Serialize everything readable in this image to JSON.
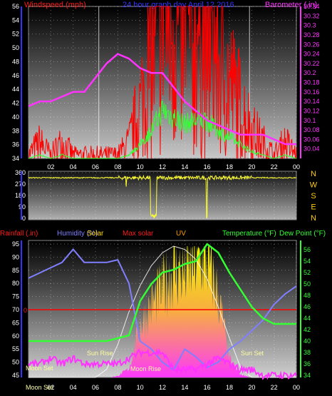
{
  "header": {
    "left": "Windspeed (mph)",
    "center": "24 hour graph day   April 12 2016",
    "right": "Barometer (.in)"
  },
  "colors": {
    "wind": "#ff1a1a",
    "gust": "#ff0000",
    "winddir": "#ffff33",
    "barometer": "#ff33ff",
    "humidity": "#7f7fff",
    "temperature": "#33ff33",
    "dewpoint": "#ff33ff",
    "solar": "#ffd700",
    "maxsolar": "#ffffff",
    "rain": "#ff0000",
    "axis_left": "#3333ff",
    "axis_right": "#33ff33",
    "axis_baro": "#ff33ff"
  },
  "x_ticks": [
    "02",
    "04",
    "06",
    "08",
    "10",
    "12",
    "14",
    "16",
    "18",
    "20",
    "22",
    "00"
  ],
  "dir_labels": [
    "N",
    "W",
    "S",
    "E",
    "N"
  ],
  "legend": {
    "rainfall": "Rainfall (.in)",
    "humidity": "Humidity (%)",
    "solar": "Solar",
    "maxsolar": "Max solar",
    "uv": "UV",
    "temperature": "Temperature (°F)",
    "dewpoint": "Dew Point (°F)"
  },
  "annotations": {
    "moon_set": "Moon Set",
    "moon_rise": "Moon Rise",
    "sun_rise": "Sun Rise",
    "sun_set": "Sun Set",
    "rain_zero": "0",
    "moon_set_axis": "Moon Set"
  },
  "chart_data": [
    {
      "type": "line",
      "title": "24 hour graph day   April 12 2016",
      "x": [
        0,
        1,
        2,
        3,
        4,
        5,
        6,
        7,
        8,
        9,
        10,
        11,
        12,
        13,
        14,
        15,
        16,
        17,
        18,
        19,
        20,
        21,
        22,
        23,
        24
      ],
      "series": [
        {
          "name": "Windspeed (mph)",
          "values": [
            34,
            35,
            34,
            35,
            34,
            34,
            34,
            34,
            34,
            35,
            38,
            42,
            48,
            46,
            44,
            45,
            45,
            42,
            40,
            38,
            36,
            35,
            34,
            35,
            34
          ]
        },
        {
          "name": "Barometer (.in)",
          "values": [
            30.13,
            30.14,
            30.14,
            30.15,
            30.16,
            30.16,
            30.19,
            30.22,
            30.24,
            30.23,
            30.21,
            30.2,
            30.2,
            30.17,
            30.14,
            30.12,
            30.1,
            30.09,
            30.08,
            30.07,
            30.07,
            30.07,
            30.06,
            30.05,
            30.05
          ]
        }
      ],
      "ylim_left": [
        34,
        56
      ],
      "ylim_right": [
        30.02,
        30.34
      ],
      "y_ticks_left": [
        34,
        36,
        38,
        40,
        42,
        44,
        46,
        48,
        50,
        52,
        54,
        56
      ],
      "y_ticks_right": [
        "30.04",
        "30.06",
        "30.08",
        "30.1",
        "30.12",
        "30.14",
        "30.16",
        "30.18",
        "30.2",
        "30.22",
        "30.24",
        "30.26",
        "30.28",
        "30.3",
        "30.32",
        "30.34"
      ]
    },
    {
      "type": "line",
      "series": [
        {
          "name": "Wind direction",
          "values": [
            320,
            320,
            320,
            320,
            320,
            320,
            320,
            320,
            320,
            320,
            320,
            320,
            330,
            0,
            330,
            330,
            0,
            320,
            320,
            320,
            320,
            320,
            320,
            320,
            320
          ]
        }
      ],
      "ylim": [
        0,
        360
      ],
      "y_ticks": [
        0,
        90,
        180,
        270,
        360
      ]
    },
    {
      "type": "line",
      "x": [
        0,
        1,
        2,
        3,
        4,
        5,
        6,
        7,
        8,
        9,
        10,
        11,
        12,
        13,
        14,
        15,
        16,
        17,
        18,
        19,
        20,
        21,
        22,
        23,
        24
      ],
      "series": [
        {
          "name": "Humidity (%)",
          "values": [
            82,
            84,
            86,
            88,
            93,
            88,
            88,
            88,
            89,
            80,
            58,
            55,
            50,
            47,
            55,
            52,
            48,
            50,
            55,
            58,
            62,
            66,
            72,
            76,
            79
          ]
        },
        {
          "name": "Temperature (°F)",
          "values": [
            40,
            40,
            40,
            40,
            40,
            40,
            40,
            40,
            40.5,
            41,
            47,
            50,
            52,
            52.5,
            53.5,
            54,
            57,
            55.5,
            52,
            49,
            46,
            44,
            43,
            43,
            43
          ]
        },
        {
          "name": "Dew Point (°F)",
          "values": [
            36,
            36,
            37,
            36,
            37,
            36,
            36,
            36,
            36,
            37,
            38,
            38,
            38,
            35,
            35,
            35,
            36,
            37,
            36,
            35,
            35,
            34,
            34,
            34,
            34
          ]
        },
        {
          "name": "Solar",
          "values": [
            0,
            0,
            0,
            0,
            0,
            0,
            0,
            0,
            10,
            60,
            350,
            480,
            600,
            720,
            700,
            780,
            800,
            550,
            120,
            20,
            0,
            0,
            0,
            0,
            0
          ]
        },
        {
          "name": "Max solar",
          "values": [
            0,
            0,
            0,
            0,
            0,
            0,
            0,
            50,
            200,
            400,
            560,
            680,
            760,
            800,
            780,
            720,
            600,
            430,
            240,
            60,
            0,
            0,
            0,
            0,
            0
          ]
        }
      ],
      "ylim_left": [
        45,
        95
      ],
      "ylim_right": [
        34,
        57
      ],
      "y_ticks_left": [
        45,
        50,
        55,
        60,
        65,
        70,
        75,
        80,
        85,
        90,
        95
      ],
      "y_ticks_right": [
        34,
        36,
        38,
        40,
        42,
        44,
        46,
        48,
        50,
        52,
        54,
        56
      ]
    }
  ]
}
